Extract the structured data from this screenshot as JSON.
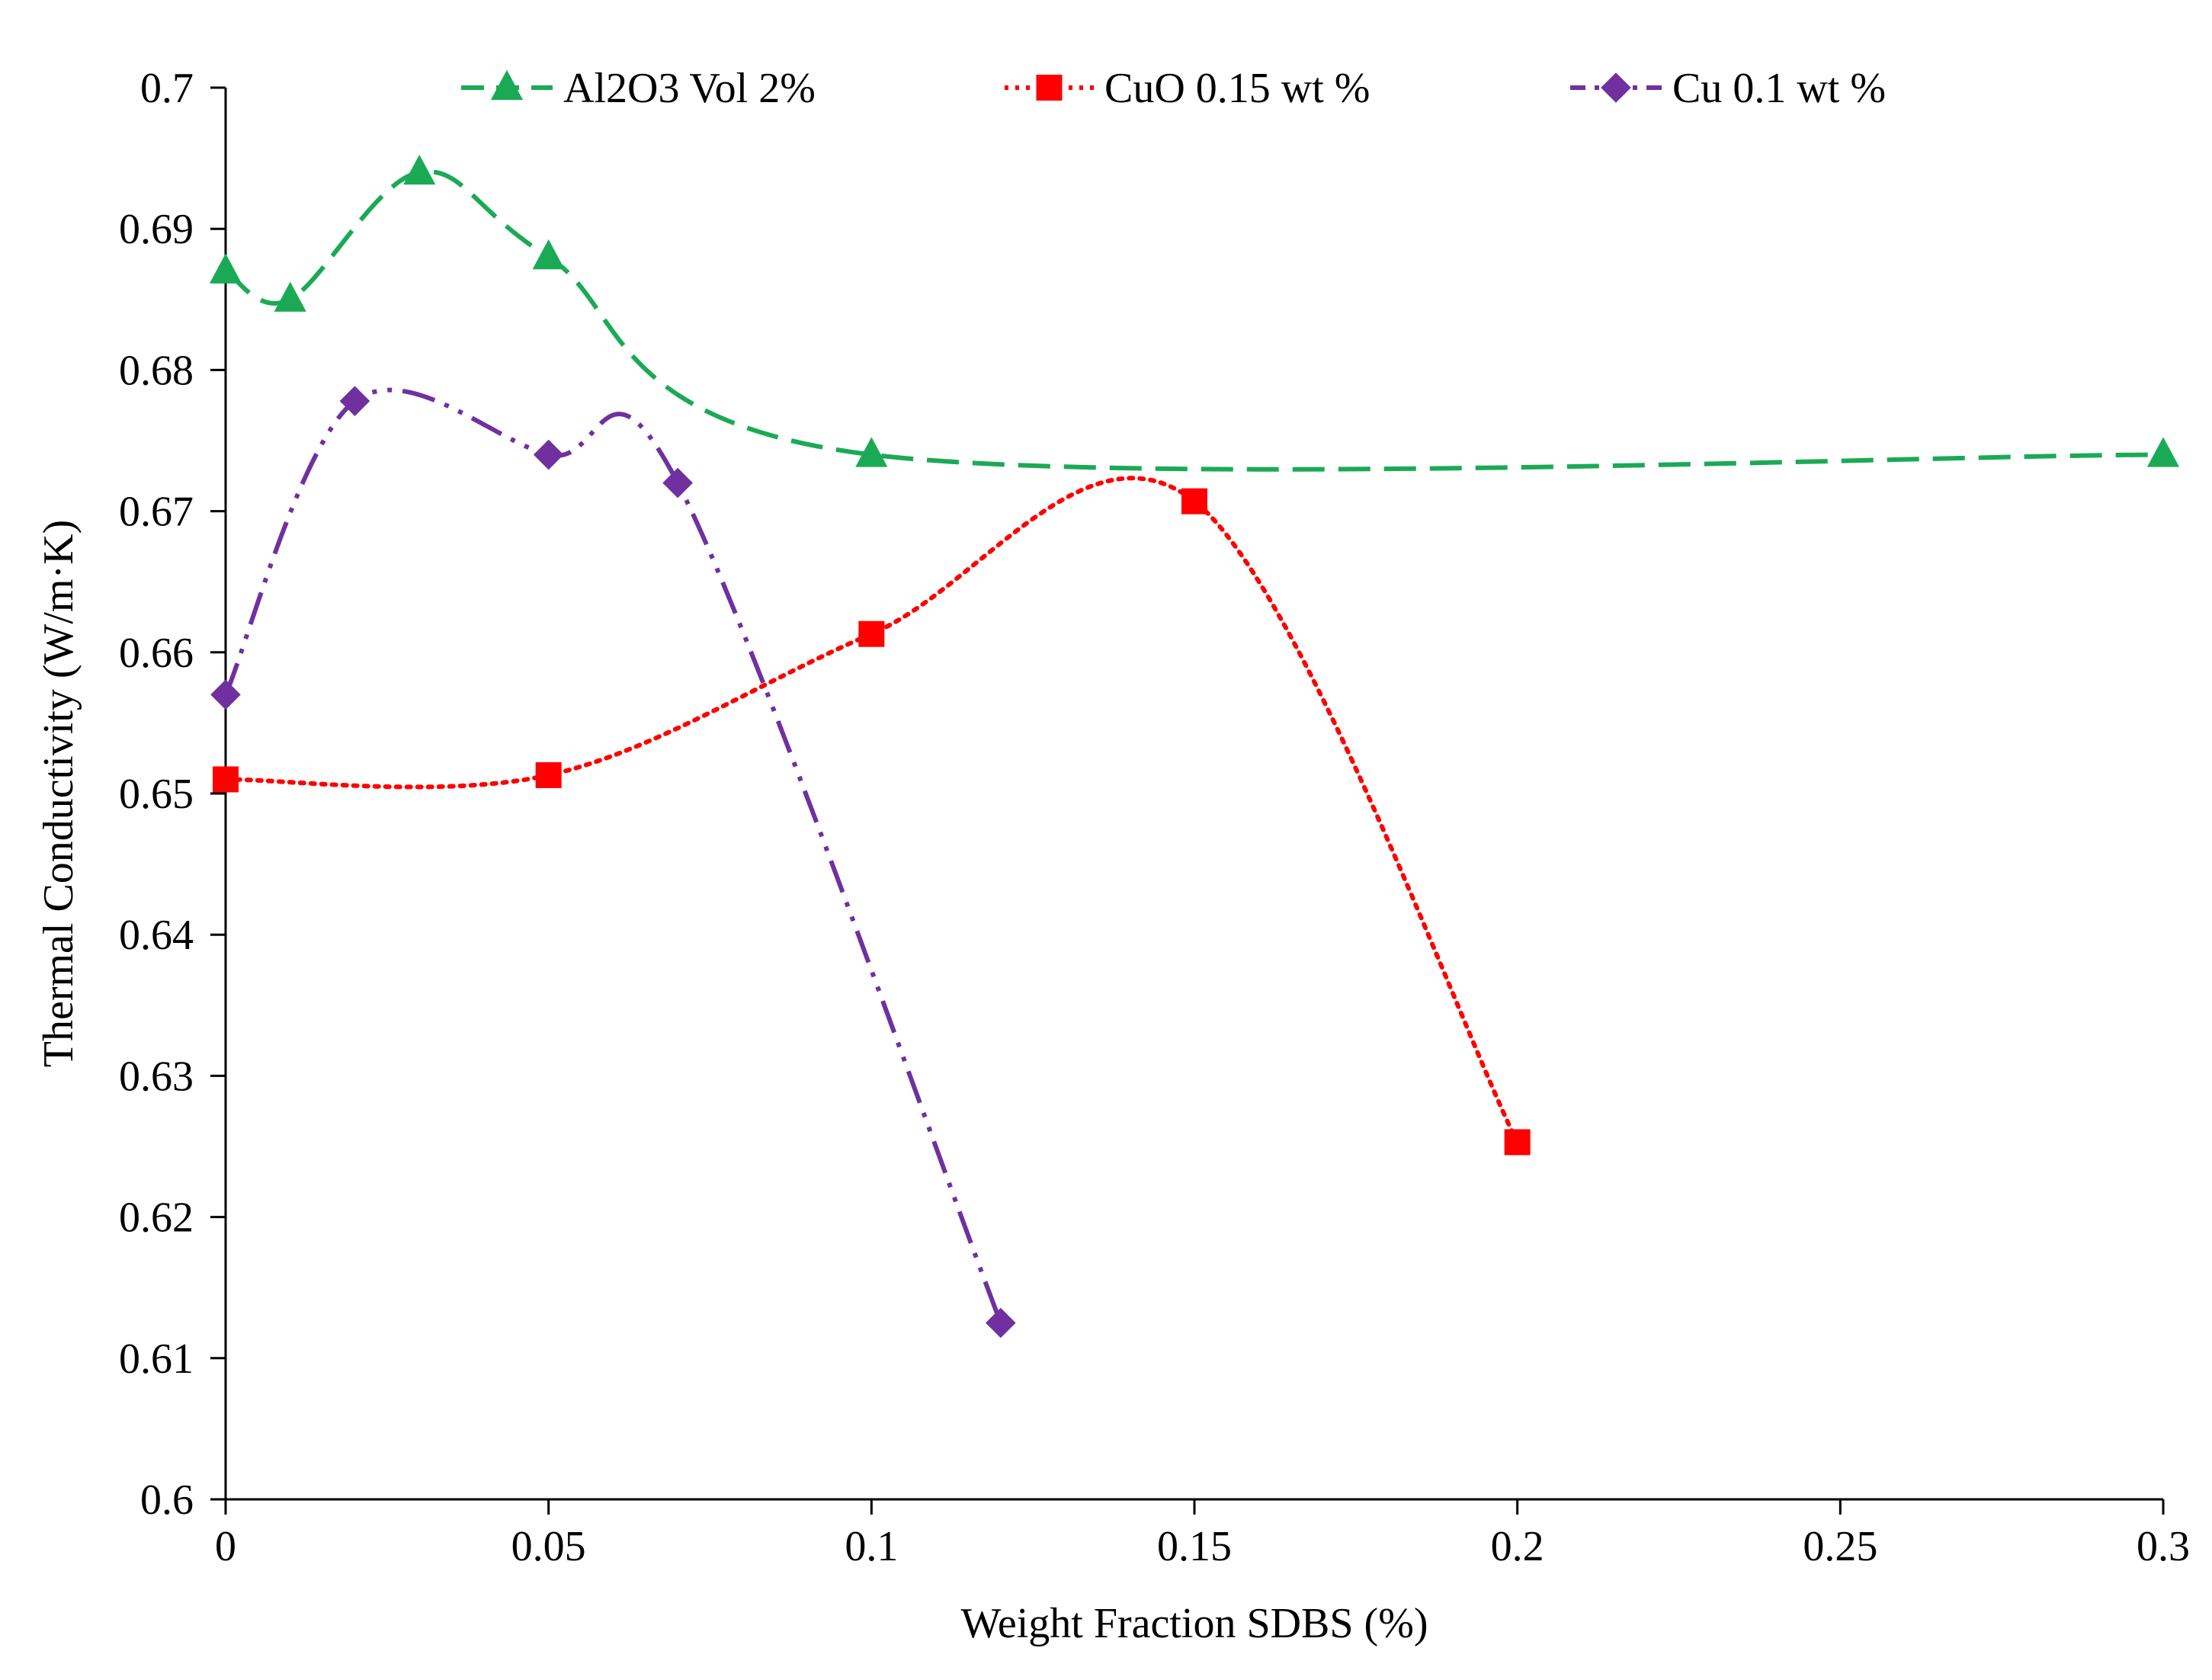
{
  "chart_data": {
    "type": "line",
    "title": "",
    "xlabel": "Weight Fraction SDBS (%)",
    "ylabel": "Thermal Conductivity (W/m·K)",
    "xlim": [
      0,
      0.3
    ],
    "ylim": [
      0.6,
      0.7
    ],
    "x_ticks": [
      0,
      0.05,
      0.1,
      0.15,
      0.2,
      0.25,
      0.3
    ],
    "x_tick_labels": [
      "0",
      "0.05",
      "0.1",
      "0.15",
      "0.2",
      "0.25",
      "0.3"
    ],
    "y_ticks": [
      0.6,
      0.61,
      0.62,
      0.63,
      0.64,
      0.65,
      0.66,
      0.67,
      0.68,
      0.69,
      0.7
    ],
    "y_tick_labels": [
      "0.6",
      "0.61",
      "0.62",
      "0.63",
      "0.64",
      "0.65",
      "0.66",
      "0.67",
      "0.68",
      "0.69",
      "0.7"
    ],
    "grid": false,
    "legend_position": "top",
    "series": [
      {
        "name": "Al2O3 Vol 2%",
        "color": "#1aaa55",
        "marker": "triangle",
        "line_style": "dashed",
        "x": [
          0,
          0.01,
          0.03,
          0.05,
          0.1,
          0.3
        ],
        "y": [
          0.687,
          0.685,
          0.694,
          0.688,
          0.674,
          0.674
        ]
      },
      {
        "name": "CuO 0.15 wt %",
        "color": "#ff0000",
        "marker": "square",
        "line_style": "dotted",
        "x": [
          0,
          0.05,
          0.1,
          0.15,
          0.2
        ],
        "y": [
          0.651,
          0.6513,
          0.6613,
          0.6707,
          0.6253
        ]
      },
      {
        "name": "Cu 0.1 wt %",
        "color": "#7030a0",
        "marker": "diamond",
        "line_style": "dash-dot-dot",
        "x": [
          0,
          0.02,
          0.05,
          0.07,
          0.12
        ],
        "y": [
          0.657,
          0.6778,
          0.674,
          0.672,
          0.6125
        ]
      }
    ]
  }
}
